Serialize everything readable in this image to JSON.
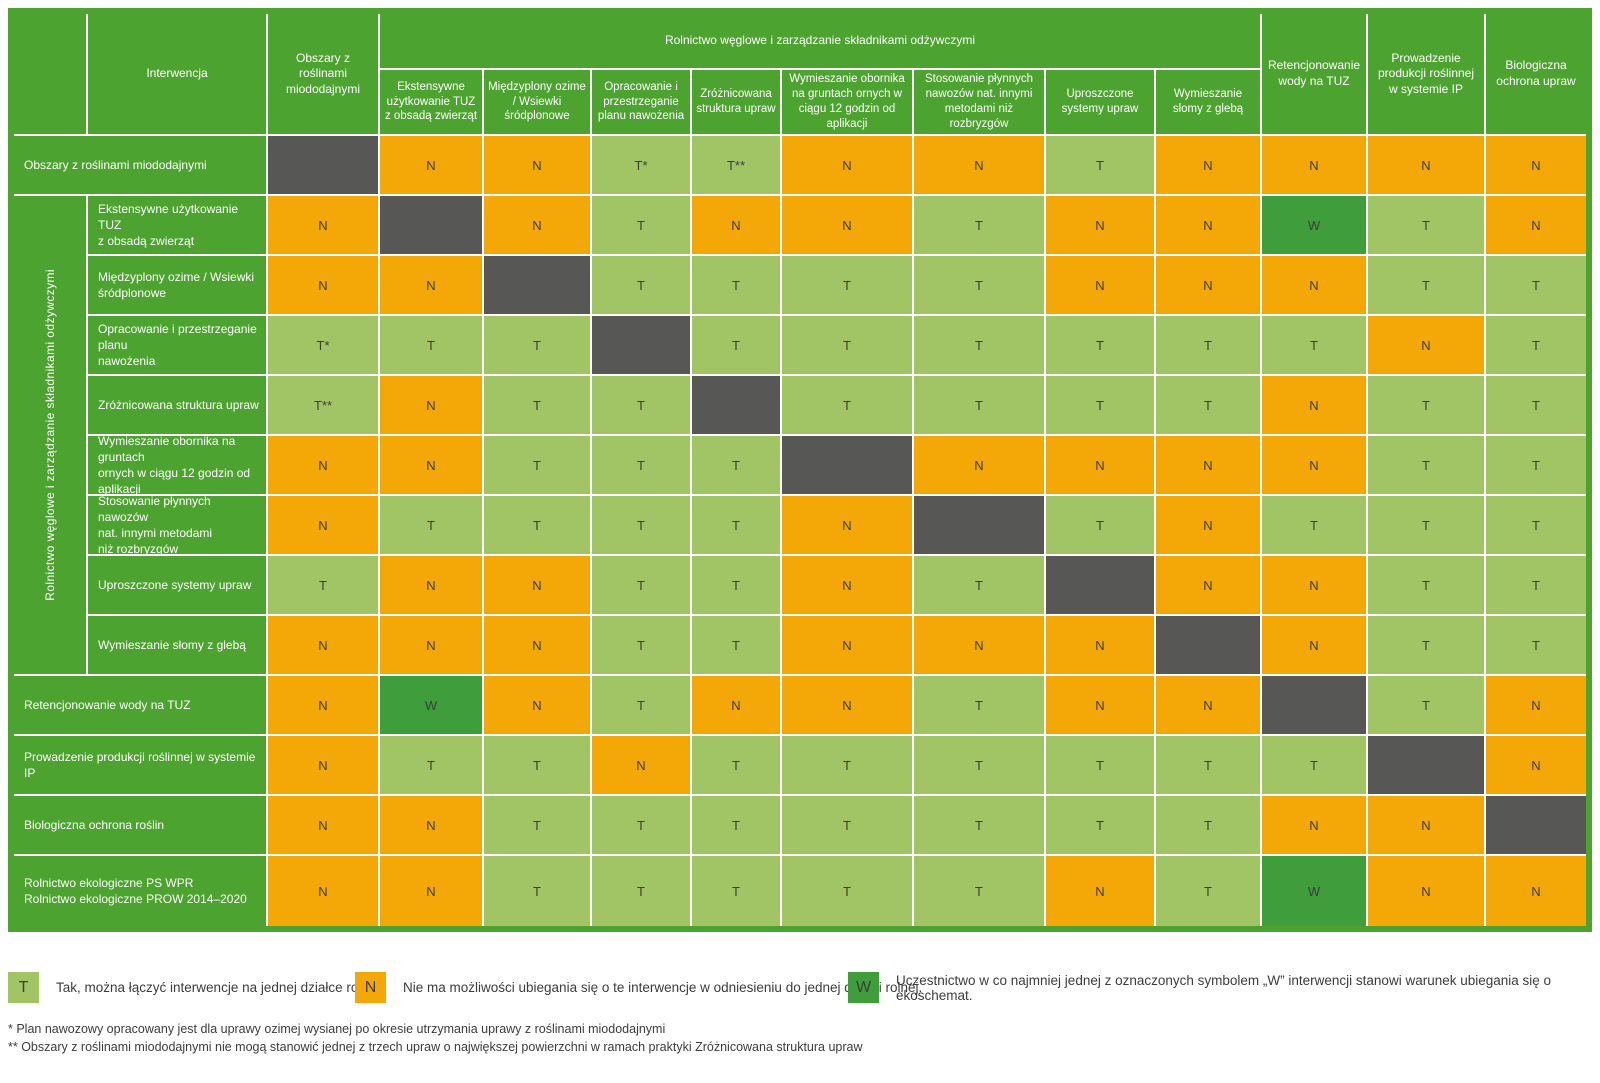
{
  "colors": {
    "base_green": "#4da330",
    "cell_yes_green": "#a1c464",
    "cell_no_orange": "#f4a808",
    "cell_w_green": "#3f9d3b",
    "cell_self_gray": "#575756",
    "cell_text": "#3e3d3c",
    "header_text": "#ffffff",
    "note_text": "#3c3c3b"
  },
  "chart_data": {
    "type": "heatmap",
    "corner_label": "Interwencja",
    "column_group_header": "Rolnictwo węglowe i zarządzanie składnikami odżywczymi",
    "row_group_label": "Rolnictwo węglowe i zarządzanie składnikami odżywczymi",
    "columns": [
      {
        "label": "Obszary z roślinami miododajnymi",
        "group": false
      },
      {
        "label": "Ekstensywne użytkowanie TUZ z obsadą zwierząt",
        "group": true
      },
      {
        "label": "Międzyplony ozime / Wsiewki śródplonowe",
        "group": true
      },
      {
        "label": "Opracowanie i przestrzeganie planu nawożenia",
        "group": true
      },
      {
        "label": "Zróżnicowana struktura upraw",
        "group": true
      },
      {
        "label": "Wymieszanie obornika na gruntach ornych w ciągu 12 godzin od aplikacji",
        "group": true
      },
      {
        "label": "Stosowanie płynnych nawozów nat. innymi metodami niż rozbryzgów",
        "group": true
      },
      {
        "label": "Uproszczone systemy upraw",
        "group": true
      },
      {
        "label": "Wymieszanie słomy z glebą",
        "group": true
      },
      {
        "label": "Retencjonowanie wody na TUZ",
        "group": false
      },
      {
        "label": "Prowadzenie produkcji roślinnej w systemie IP",
        "group": false
      },
      {
        "label": "Biologiczna ochrona upraw",
        "group": false
      }
    ],
    "rows": [
      {
        "label": "Obszary z roślinami miododajnymi",
        "group": false,
        "cells": [
          "X",
          "N",
          "N",
          "T*",
          "T**",
          "N",
          "N",
          "T",
          "N",
          "N",
          "N",
          "N"
        ]
      },
      {
        "label": "Ekstensywne użytkowanie TUZ\nz obsadą zwierząt",
        "group": true,
        "cells": [
          "N",
          "X",
          "N",
          "T",
          "N",
          "N",
          "T",
          "N",
          "N",
          "W",
          "T",
          "N"
        ]
      },
      {
        "label": "Międzyplony ozime / Wsiewki\nśródplonowe",
        "group": true,
        "cells": [
          "N",
          "N",
          "X",
          "T",
          "T",
          "T",
          "T",
          "N",
          "N",
          "N",
          "T",
          "T"
        ]
      },
      {
        "label": "Opracowanie i przestrzeganie planu\nnawożenia",
        "group": true,
        "cells": [
          "T*",
          "T",
          "T",
          "X",
          "T",
          "T",
          "T",
          "T",
          "T",
          "T",
          "N",
          "T"
        ]
      },
      {
        "label": "Zróżnicowana struktura upraw",
        "group": true,
        "cells": [
          "T**",
          "N",
          "T",
          "T",
          "X",
          "T",
          "T",
          "T",
          "T",
          "N",
          "T",
          "T"
        ]
      },
      {
        "label": "Wymieszanie obornika na gruntach\nornych w ciągu 12 godzin od\naplikacji",
        "group": true,
        "cells": [
          "N",
          "N",
          "T",
          "T",
          "T",
          "X",
          "N",
          "N",
          "N",
          "N",
          "T",
          "T"
        ]
      },
      {
        "label": "Stosowanie płynnych nawozów\nnat. innymi metodami\nniż rozbryzgów",
        "group": true,
        "cells": [
          "N",
          "T",
          "T",
          "T",
          "T",
          "N",
          "X",
          "T",
          "N",
          "T",
          "T",
          "T"
        ]
      },
      {
        "label": "Uproszczone systemy upraw",
        "group": true,
        "cells": [
          "T",
          "N",
          "N",
          "T",
          "T",
          "N",
          "T",
          "X",
          "N",
          "N",
          "T",
          "T"
        ]
      },
      {
        "label": "Wymieszanie słomy z glebą",
        "group": true,
        "cells": [
          "N",
          "N",
          "N",
          "T",
          "T",
          "N",
          "N",
          "N",
          "X",
          "N",
          "T",
          "T"
        ]
      },
      {
        "label": "Retencjonowanie wody na TUZ",
        "group": false,
        "cells": [
          "N",
          "W",
          "N",
          "T",
          "N",
          "N",
          "T",
          "N",
          "N",
          "X",
          "T",
          "N"
        ]
      },
      {
        "label": "Prowadzenie produkcji roślinnej w systemie IP",
        "group": false,
        "cells": [
          "N",
          "T",
          "T",
          "N",
          "T",
          "T",
          "T",
          "T",
          "T",
          "T",
          "X",
          "N"
        ]
      },
      {
        "label": "Biologiczna ochrona roślin",
        "group": false,
        "cells": [
          "N",
          "N",
          "T",
          "T",
          "T",
          "T",
          "T",
          "T",
          "T",
          "N",
          "N",
          "X"
        ]
      },
      {
        "label": "Rolnictwo ekologiczne PS WPR\nRolnictwo ekologiczne PROW 2014–2020",
        "group": false,
        "cells": [
          "N",
          "N",
          "T",
          "T",
          "T",
          "T",
          "T",
          "N",
          "T",
          "W",
          "N",
          "N"
        ]
      }
    ]
  },
  "legend": [
    {
      "symbol": "T",
      "text": "Tak, można łączyć interwencje na jednej działce rolnej."
    },
    {
      "symbol": "N",
      "text": "Nie ma możliwości ubiegania się o te interwencje w odniesieniu do jednej działki rolnej."
    },
    {
      "symbol": "W",
      "text": "Uczestnictwo w co najmniej jednej z oznaczonych symbolem „W” interwencji stanowi warunek ubiegania się o ekoschemat."
    }
  ],
  "footnotes": [
    "* Plan nawozowy opracowany jest dla uprawy ozimej wysianej po okresie utrzymania uprawy z roślinami miododajnymi",
    "** Obszary z roślinami miododajnymi nie mogą stanowić jednej z trzech upraw o największej powierzchni w ramach praktyki Zróżnicowana struktura upraw"
  ]
}
